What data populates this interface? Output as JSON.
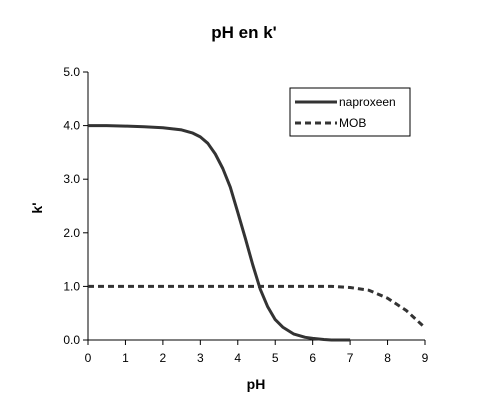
{
  "chart_data": {
    "type": "line",
    "title": "pH en k'",
    "xlabel": "pH",
    "ylabel": "k'",
    "xlim": [
      0,
      9
    ],
    "ylim": [
      0,
      5
    ],
    "x_ticks": [
      "0",
      "1",
      "2",
      "3",
      "4",
      "5",
      "6",
      "7",
      "8",
      "9"
    ],
    "y_ticks": [
      "0.0",
      "1.0",
      "2.0",
      "3.0",
      "4.0",
      "5.0"
    ],
    "grid": false,
    "legend_position": "top-right",
    "series": [
      {
        "name": "naproxeen",
        "style": "solid",
        "color": "#333333",
        "x": [
          0,
          0.5,
          1,
          1.5,
          2,
          2.5,
          2.8,
          3,
          3.2,
          3.4,
          3.6,
          3.8,
          4,
          4.2,
          4.4,
          4.6,
          4.8,
          5,
          5.2,
          5.5,
          5.8,
          6,
          6.3,
          6.5,
          7
        ],
        "y": [
          4.0,
          4.0,
          3.99,
          3.98,
          3.96,
          3.92,
          3.86,
          3.79,
          3.67,
          3.47,
          3.2,
          2.85,
          2.38,
          1.9,
          1.4,
          0.95,
          0.62,
          0.38,
          0.24,
          0.11,
          0.05,
          0.03,
          0.01,
          0.0,
          0.0
        ]
      },
      {
        "name": "MOB",
        "style": "dashed",
        "color": "#333333",
        "x": [
          0,
          1,
          2,
          3,
          4,
          5,
          6,
          6.5,
          7,
          7.5,
          8,
          8.5,
          9
        ],
        "y": [
          1.0,
          1.0,
          1.0,
          1.0,
          1.0,
          1.0,
          1.0,
          1.0,
          0.98,
          0.93,
          0.78,
          0.55,
          0.23
        ]
      }
    ]
  }
}
